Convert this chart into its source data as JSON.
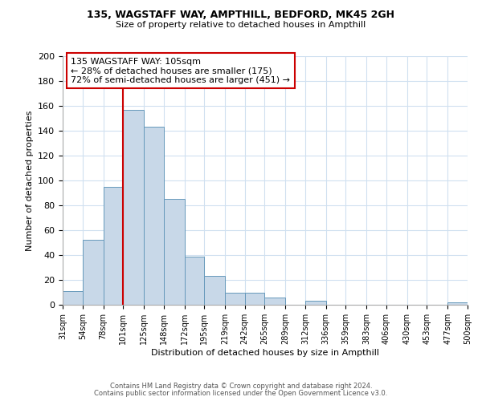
{
  "title1": "135, WAGSTAFF WAY, AMPTHILL, BEDFORD, MK45 2GH",
  "title2": "Size of property relative to detached houses in Ampthill",
  "xlabel": "Distribution of detached houses by size in Ampthill",
  "ylabel": "Number of detached properties",
  "bin_labels": [
    "31sqm",
    "54sqm",
    "78sqm",
    "101sqm",
    "125sqm",
    "148sqm",
    "172sqm",
    "195sqm",
    "219sqm",
    "242sqm",
    "265sqm",
    "289sqm",
    "312sqm",
    "336sqm",
    "359sqm",
    "383sqm",
    "406sqm",
    "430sqm",
    "453sqm",
    "477sqm",
    "500sqm"
  ],
  "bin_edges": [
    31,
    54,
    78,
    101,
    125,
    148,
    172,
    195,
    219,
    242,
    265,
    289,
    312,
    336,
    359,
    383,
    406,
    430,
    453,
    477,
    500
  ],
  "bar_values": [
    11,
    52,
    95,
    157,
    143,
    85,
    39,
    23,
    10,
    10,
    6,
    0,
    3,
    0,
    0,
    0,
    0,
    0,
    0,
    2
  ],
  "bar_color": "#c8d8e8",
  "bar_edge_color": "#6699bb",
  "vline_x": 101,
  "vline_color": "#cc0000",
  "annotation_line1": "135 WAGSTAFF WAY: 105sqm",
  "annotation_line2": "← 28% of detached houses are smaller (175)",
  "annotation_line3": "72% of semi-detached houses are larger (451) →",
  "ylim": [
    0,
    200
  ],
  "yticks": [
    0,
    20,
    40,
    60,
    80,
    100,
    120,
    140,
    160,
    180,
    200
  ],
  "grid_color": "#d0e0f0",
  "footer1": "Contains HM Land Registry data © Crown copyright and database right 2024.",
  "footer2": "Contains public sector information licensed under the Open Government Licence v3.0."
}
